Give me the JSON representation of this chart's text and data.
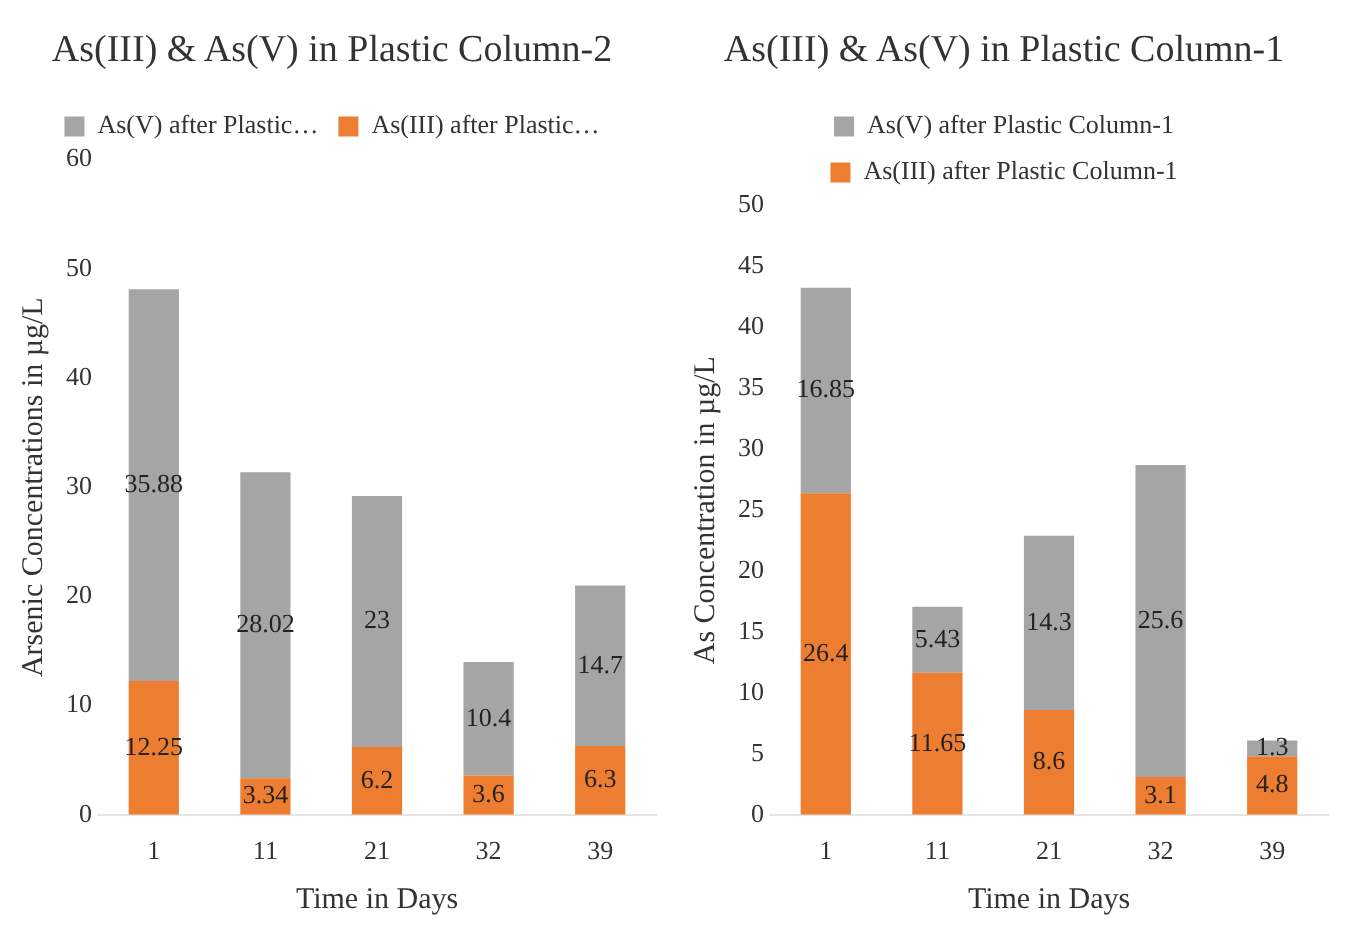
{
  "chart_data": [
    {
      "type": "bar",
      "title": "As(III) & As(V) in Plastic Column-2",
      "xlabel": "Time in Days",
      "ylabel": "Arsenic Concentrations in µg/L",
      "categories": [
        "1",
        "11",
        "21",
        "32",
        "39"
      ],
      "stacked": true,
      "data_labels": true,
      "legend": "top",
      "ylim": [
        0,
        60
      ],
      "yticks": [
        0,
        10,
        20,
        30,
        40,
        50,
        60
      ],
      "series": [
        {
          "name": "As(III) after Plastic…",
          "color": "#ed7d31",
          "values": [
            12.25,
            3.34,
            6.2,
            3.6,
            6.3
          ]
        },
        {
          "name": "As(V) after Plastic…",
          "color": "#a5a5a5",
          "values": [
            35.88,
            28.02,
            23,
            10.4,
            14.7
          ]
        }
      ]
    },
    {
      "type": "bar",
      "title": "As(III) & As(V) in Plastic Column-1",
      "xlabel": "Time in Days",
      "ylabel": "As Concentration in µg/L",
      "categories": [
        "1",
        "11",
        "21",
        "32",
        "39"
      ],
      "stacked": true,
      "data_labels": true,
      "legend": "top",
      "ylim": [
        0,
        50
      ],
      "yticks": [
        0,
        5,
        10,
        15,
        20,
        25,
        30,
        35,
        40,
        45,
        50
      ],
      "series": [
        {
          "name": "As(III) after Plastic Column-1",
          "color": "#ed7d31",
          "values": [
            26.4,
            11.65,
            8.6,
            3.1,
            4.8
          ]
        },
        {
          "name": "As(V) after Plastic Column-1",
          "color": "#a5a5a5",
          "values": [
            16.85,
            5.43,
            14.3,
            25.6,
            1.3
          ]
        }
      ]
    }
  ]
}
